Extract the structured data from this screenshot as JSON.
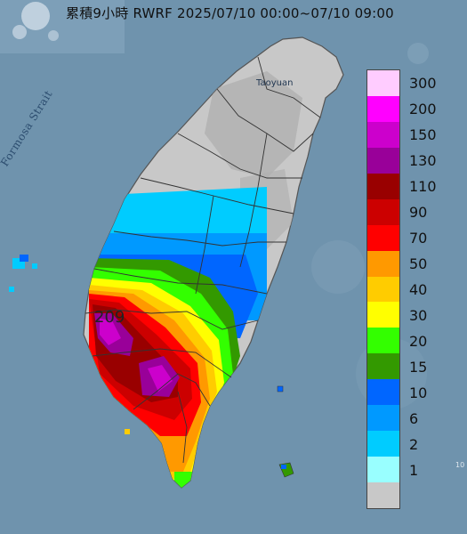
{
  "title": "累積9小時 RWRF 2025/07/10 00:00~07/10 09:00",
  "map": {
    "sea_label": "Formosa Strait",
    "city_label": "Taoyuan",
    "max_value": "209",
    "corner_mark": "10"
  },
  "legend": {
    "levels": [
      {
        "label": "300",
        "color": "#ffccff"
      },
      {
        "label": "200",
        "color": "#ff00ff"
      },
      {
        "label": "150",
        "color": "#cc00cc"
      },
      {
        "label": "130",
        "color": "#990099"
      },
      {
        "label": "110",
        "color": "#990000"
      },
      {
        "label": "90",
        "color": "#cc0000"
      },
      {
        "label": "70",
        "color": "#ff0000"
      },
      {
        "label": "50",
        "color": "#ff9900"
      },
      {
        "label": "40",
        "color": "#ffcc00"
      },
      {
        "label": "30",
        "color": "#ffff00"
      },
      {
        "label": "20",
        "color": "#33ff00"
      },
      {
        "label": "15",
        "color": "#339900"
      },
      {
        "label": "10",
        "color": "#0066ff"
      },
      {
        "label": "6",
        "color": "#0099ff"
      },
      {
        "label": "2",
        "color": "#00ccff"
      },
      {
        "label": "1",
        "color": "#99ffff"
      },
      {
        "label": "",
        "color": "#c8c8c8"
      }
    ]
  }
}
